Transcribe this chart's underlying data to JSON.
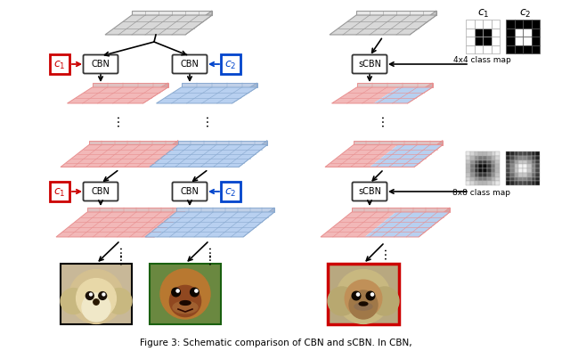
{
  "bg_color": "#ffffff",
  "pink_color": "#f2b8b8",
  "blue_color": "#b8d0f0",
  "pink_dark": "#e89090",
  "blue_dark": "#8aaad0",
  "gray_top": "#d8d8d8",
  "gray_side": "#b8b8b8",
  "gray_edge": "#888888",
  "arrow_red": "#cc0000",
  "arrow_blue": "#0044cc",
  "box_red": "#cc0000",
  "box_blue": "#0044cc",
  "box_gray": "#444444",
  "caption": "Figure 3: Schematic comparison of CBN and sCBN. In CBN,"
}
